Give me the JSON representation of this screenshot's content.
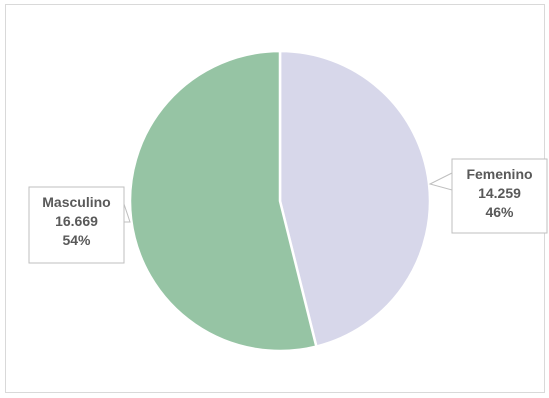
{
  "chart_data": {
    "type": "pie",
    "title": "",
    "series": [
      {
        "name": "",
        "values": [
          14259,
          16669
        ]
      }
    ],
    "categories": [
      "Femenino",
      "Masculino"
    ],
    "values": [
      14259,
      16669
    ],
    "value_labels": [
      "14.259",
      "16.669"
    ],
    "percent_labels": [
      "46%",
      "54%"
    ],
    "colors": {
      "Femenino": "#d7d7ea",
      "Masculino": "#96c4a4",
      "slice_border": "#ffffff",
      "callout_border": "#bfbfbf",
      "text": "#595959"
    },
    "legend": "none",
    "start_angle_degrees": 0,
    "direction": "clockwise"
  }
}
